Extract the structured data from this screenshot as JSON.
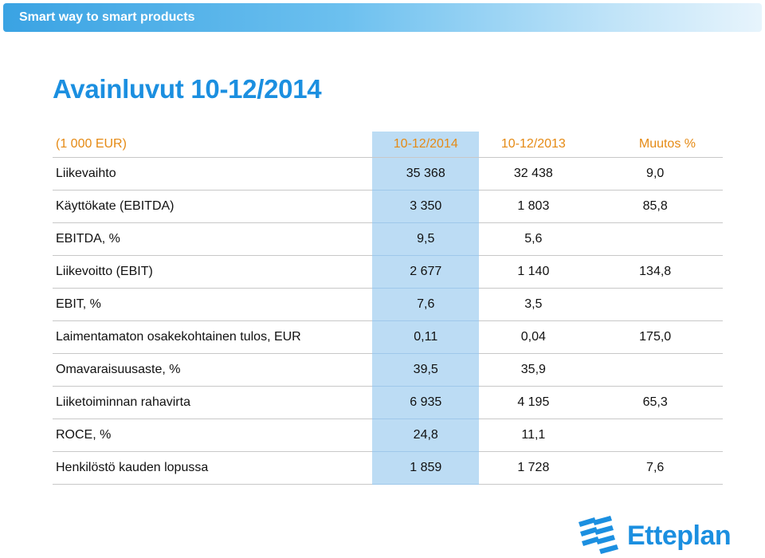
{
  "banner": {
    "text": "Smart way to smart products"
  },
  "title": "Avainluvut 10-12/2014",
  "table": {
    "headers": [
      "(1 000 EUR)",
      "10-12/2014",
      "10-12/2013",
      "Muutos %"
    ],
    "rows": [
      [
        "Liikevaihto",
        "35 368",
        "32 438",
        "9,0"
      ],
      [
        "Käyttökate (EBITDA)",
        "3 350",
        "1 803",
        "85,8"
      ],
      [
        "EBITDA, %",
        "9,5",
        "5,6",
        ""
      ],
      [
        "Liikevoitto (EBIT)",
        "2 677",
        "1 140",
        "134,8"
      ],
      [
        "EBIT, %",
        "7,6",
        "3,5",
        ""
      ],
      [
        "Laimentamaton osakekohtainen tulos, EUR",
        "0,11",
        "0,04",
        "175,0"
      ],
      [
        "Omavaraisuusaste, %",
        "39,5",
        "35,9",
        ""
      ],
      [
        "Liiketoiminnan rahavirta",
        "6 935",
        "4 195",
        "65,3"
      ],
      [
        "ROCE, %",
        "24,8",
        "11,1",
        ""
      ],
      [
        "Henkilöstö kauden lopussa",
        "1 859",
        "1 728",
        "7,6"
      ]
    ]
  },
  "logo": {
    "text": "Etteplan",
    "icon": "etteplan-logo-icon"
  },
  "colors": {
    "accent": "#1b8fe0",
    "header": "#e58a14",
    "highlight": "#bcdcf4"
  }
}
